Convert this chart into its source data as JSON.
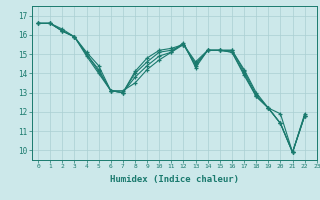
{
  "xlabel": "Humidex (Indice chaleur)",
  "ylabel": "",
  "bg_color": "#cce8ea",
  "grid_color": "#aacfd2",
  "line_color": "#1a7a6e",
  "xlim": [
    -0.5,
    23
  ],
  "ylim": [
    9.5,
    17.5
  ],
  "xticks": [
    0,
    1,
    2,
    3,
    4,
    5,
    6,
    7,
    8,
    9,
    10,
    11,
    12,
    13,
    14,
    15,
    16,
    17,
    18,
    19,
    20,
    21,
    22,
    23
  ],
  "yticks": [
    10,
    11,
    12,
    13,
    14,
    15,
    16,
    17
  ],
  "lines": [
    [
      16.6,
      16.6,
      16.3,
      15.9,
      15.1,
      14.4,
      13.1,
      13.1,
      13.5,
      14.2,
      14.7,
      15.1,
      15.6,
      14.3,
      15.2,
      15.2,
      15.2,
      14.2,
      13.0,
      12.2,
      11.9,
      9.9,
      11.9
    ],
    [
      16.6,
      16.6,
      16.2,
      15.9,
      15.0,
      14.2,
      13.1,
      13.0,
      13.8,
      14.4,
      14.9,
      15.1,
      15.5,
      14.4,
      15.2,
      15.2,
      15.2,
      14.1,
      12.9,
      12.2,
      11.4,
      9.9,
      11.8
    ],
    [
      16.6,
      16.6,
      16.2,
      15.9,
      15.0,
      14.1,
      13.1,
      13.0,
      14.0,
      14.6,
      15.1,
      15.2,
      15.5,
      14.5,
      15.2,
      15.2,
      15.1,
      14.0,
      12.8,
      12.2,
      11.4,
      9.9,
      11.8
    ],
    [
      16.6,
      16.6,
      16.2,
      15.9,
      14.9,
      14.0,
      13.1,
      13.0,
      14.1,
      14.8,
      15.2,
      15.3,
      15.5,
      14.6,
      15.2,
      15.2,
      15.1,
      13.9,
      12.8,
      12.2,
      11.4,
      9.9,
      11.8
    ]
  ]
}
